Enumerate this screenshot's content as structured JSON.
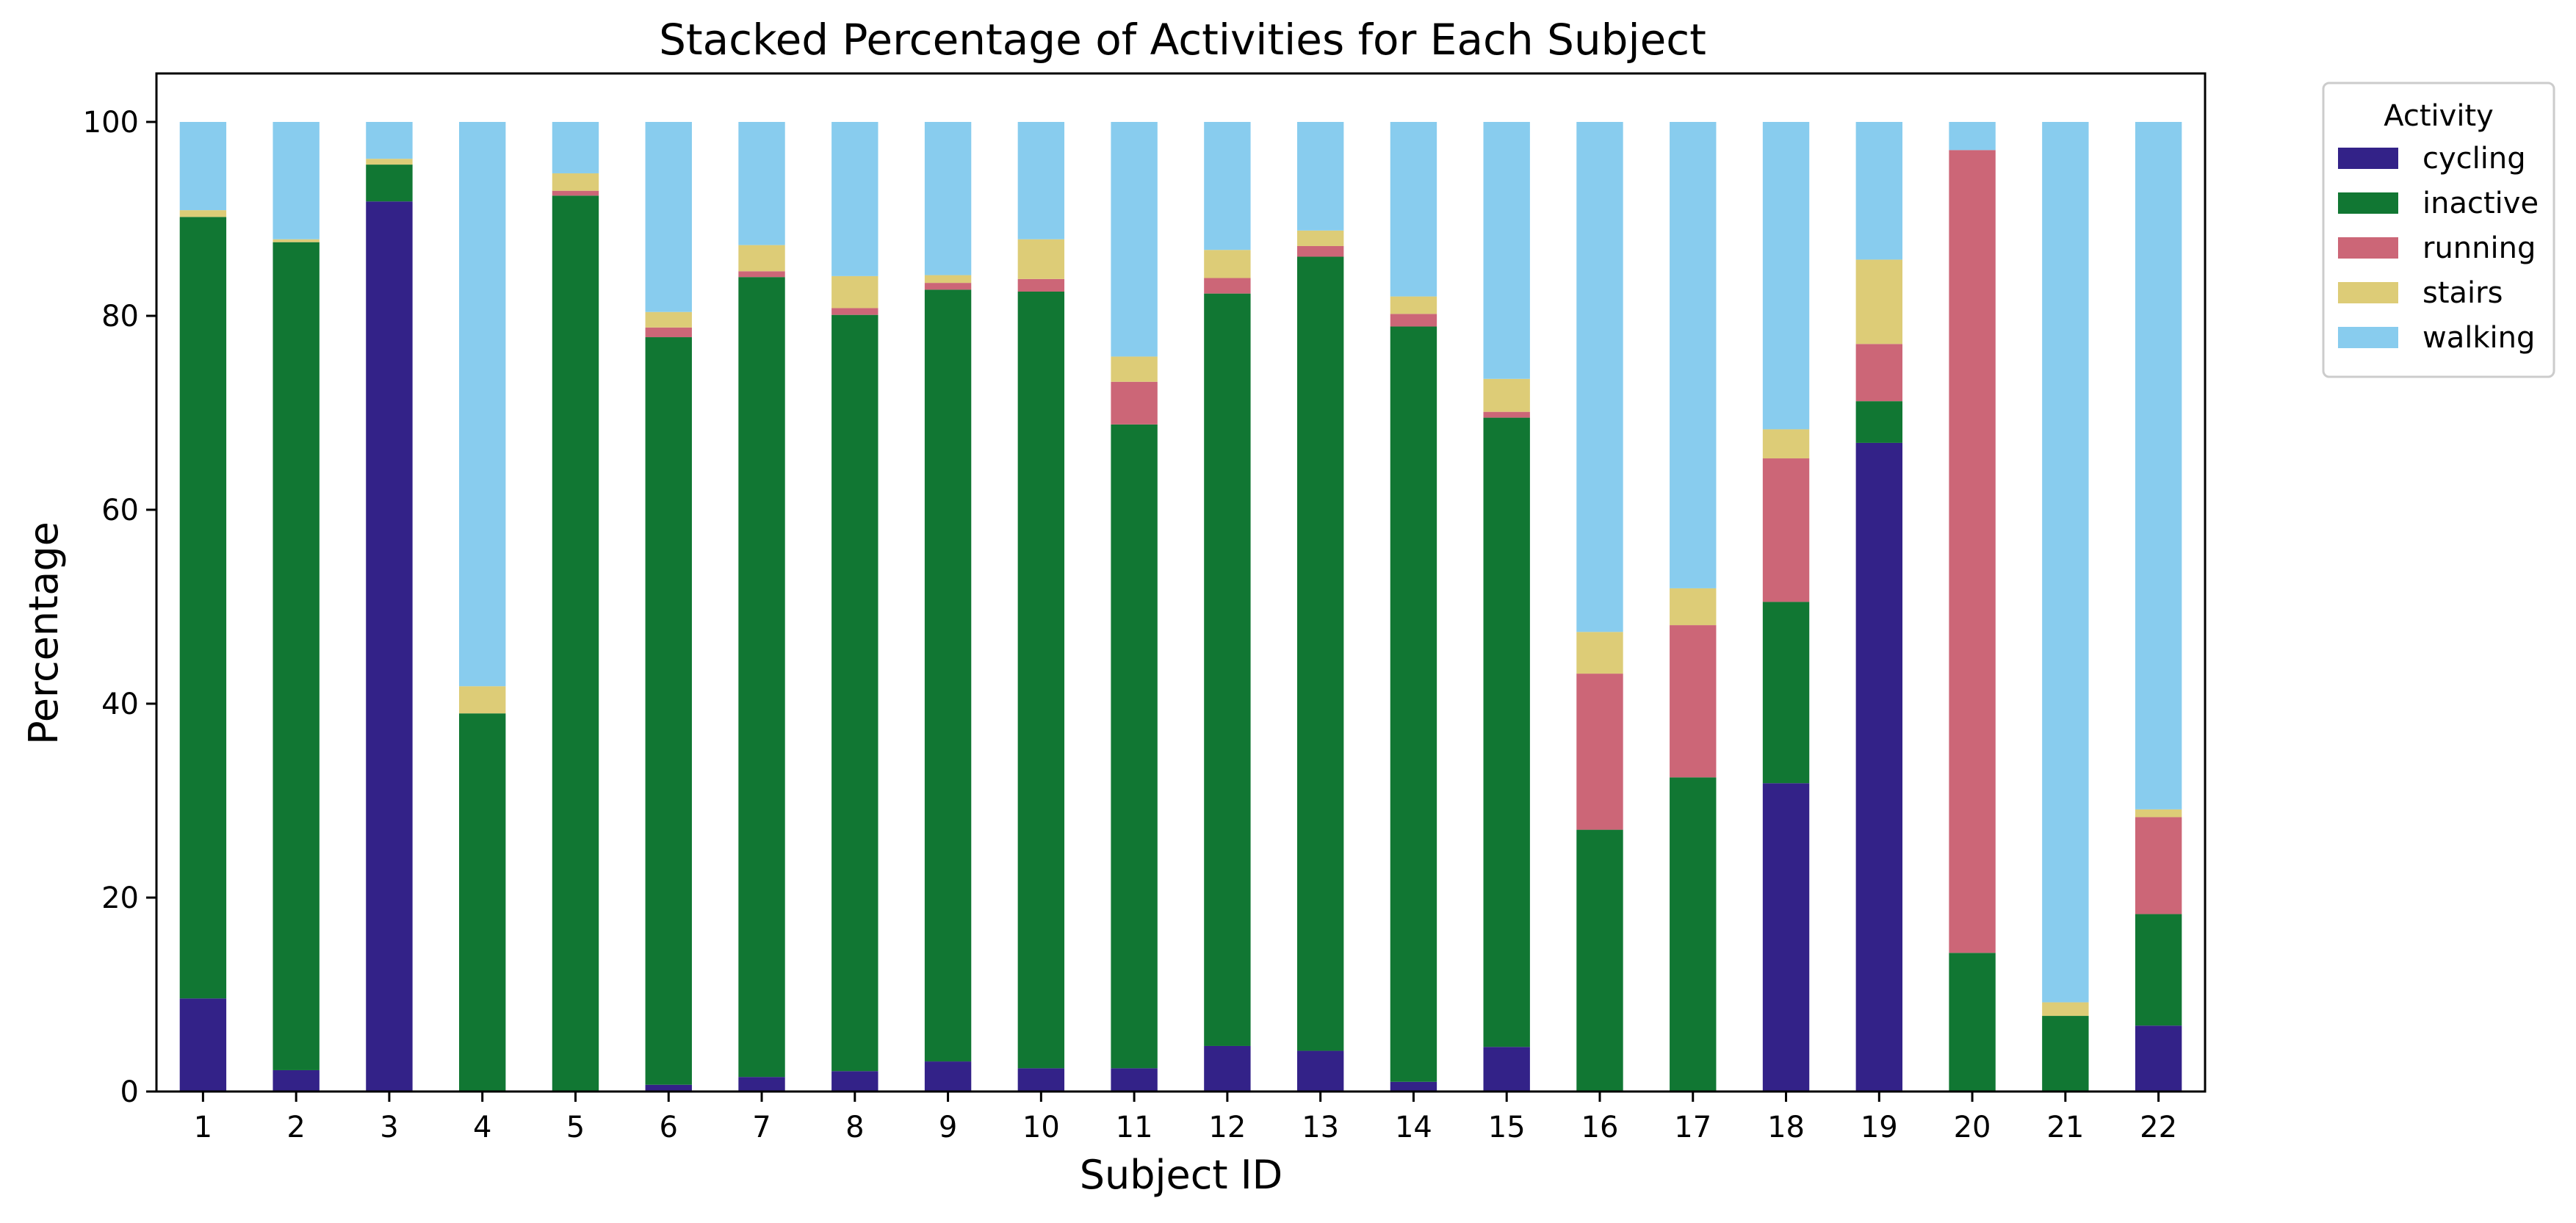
{
  "chart_data": {
    "type": "bar",
    "stacked": true,
    "title": "Stacked Percentage of Activities for Each Subject",
    "xlabel": "Subject ID",
    "ylabel": "Percentage",
    "ylim": [
      0,
      105
    ],
    "yticks": [
      0,
      20,
      40,
      60,
      80,
      100
    ],
    "grid": false,
    "legend": {
      "title": "Activity",
      "placement": "outside-top-right"
    },
    "categories": [
      "1",
      "2",
      "3",
      "4",
      "5",
      "6",
      "7",
      "8",
      "9",
      "10",
      "11",
      "12",
      "13",
      "14",
      "15",
      "16",
      "17",
      "18",
      "19",
      "20",
      "21",
      "22"
    ],
    "series": [
      {
        "name": "cycling",
        "color": "#332288",
        "values": [
          9.6,
          2.2,
          91.8,
          0,
          0,
          0.7,
          1.5,
          2.1,
          3.1,
          2.4,
          2.4,
          4.7,
          4.2,
          1.0,
          4.6,
          0,
          0,
          31.8,
          66.9,
          0,
          0,
          6.8
        ]
      },
      {
        "name": "inactive",
        "color": "#117733",
        "values": [
          80.6,
          85.4,
          3.8,
          39.0,
          92.4,
          77.1,
          82.5,
          78.0,
          79.6,
          80.1,
          66.4,
          77.6,
          81.9,
          77.9,
          64.9,
          27.0,
          32.4,
          18.7,
          4.3,
          14.3,
          7.8,
          11.5
        ]
      },
      {
        "name": "running",
        "color": "#CC6677",
        "values": [
          0,
          0,
          0,
          0,
          0.5,
          1.0,
          0.6,
          0.7,
          0.7,
          1.3,
          4.4,
          1.6,
          1.1,
          1.3,
          0.6,
          16.1,
          15.7,
          14.8,
          5.9,
          82.8,
          0,
          10.0
        ]
      },
      {
        "name": "stairs",
        "color": "#DDCC77",
        "values": [
          0.7,
          0.3,
          0.6,
          2.8,
          1.8,
          1.6,
          2.7,
          3.3,
          0.8,
          4.1,
          2.6,
          2.9,
          1.6,
          1.8,
          3.4,
          4.3,
          3.8,
          3.0,
          8.7,
          0,
          1.4,
          0.8
        ]
      },
      {
        "name": "walking",
        "color": "#88CCEE",
        "values": [
          9.1,
          12.1,
          3.8,
          58.2,
          5.3,
          19.6,
          12.7,
          15.9,
          15.8,
          12.1,
          24.2,
          13.2,
          11.2,
          18.0,
          26.5,
          52.6,
          48.1,
          31.7,
          14.2,
          2.9,
          90.8,
          70.9
        ]
      }
    ]
  }
}
